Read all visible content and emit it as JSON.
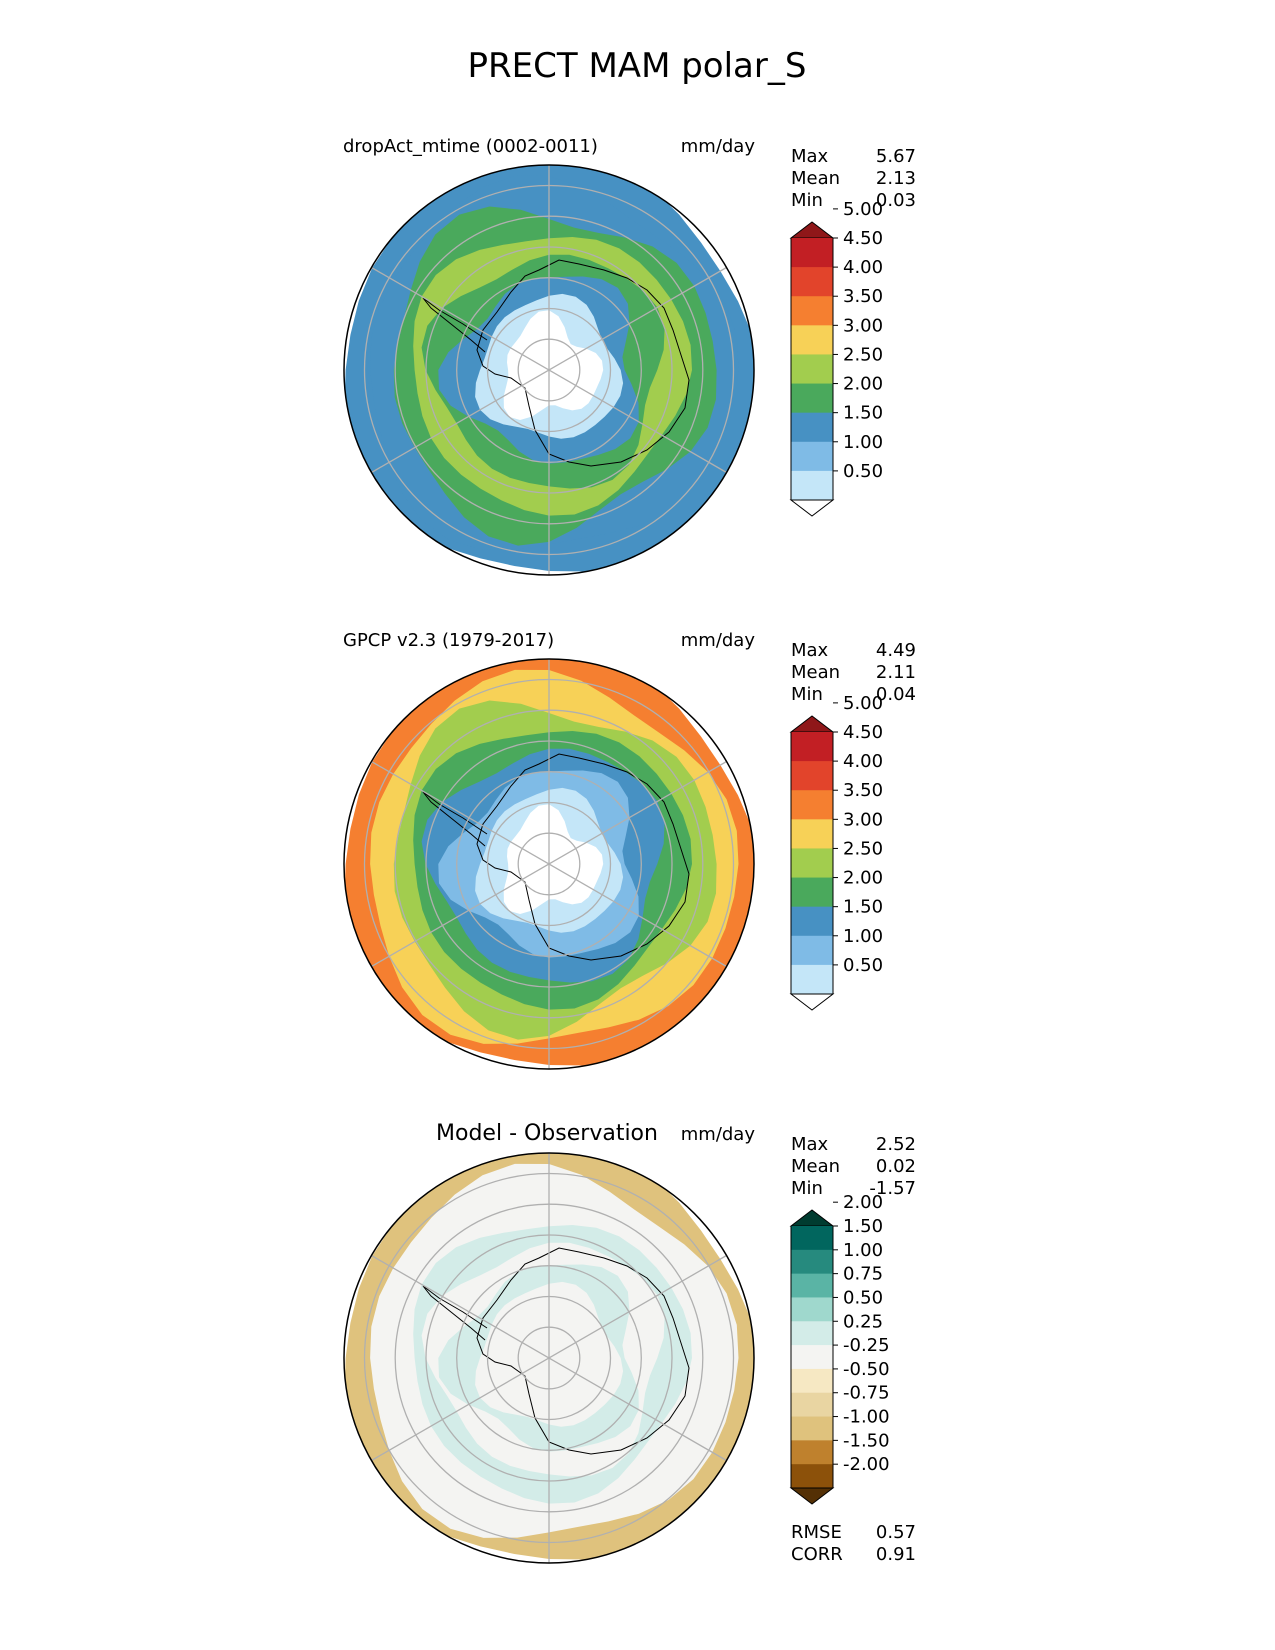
{
  "figure": {
    "title": "PRECT MAM polar_S"
  },
  "panels": [
    {
      "id": "test",
      "label": "dropAct_mtime (0002-0011)",
      "label_style": "small",
      "units": "mm/day",
      "stats": [
        {
          "name": "Max",
          "value": "5.67"
        },
        {
          "name": "Mean",
          "value": "2.13"
        },
        {
          "name": "Min",
          "value": "0.03"
        }
      ],
      "extra_stats": [],
      "colorbar": {
        "colors": [
          "#ffffff",
          "#c4e6f8",
          "#7fbbe6",
          "#4791c3",
          "#4aa95c",
          "#a2cd4e",
          "#f7d157",
          "#f57f30",
          "#e2442b",
          "#c21f24",
          "#8f1719"
        ],
        "labels": [
          "0.50",
          "1.00",
          "1.50",
          "2.00",
          "2.50",
          "3.00",
          "3.50",
          "4.00",
          "4.50",
          "5.00"
        ]
      },
      "rings": [
        {
          "level": 3
        },
        {
          "level": 3
        },
        {
          "level": 4
        },
        {
          "level": 5
        },
        {
          "level": 4
        },
        {
          "level": 3
        },
        {
          "level": 1
        },
        {
          "level": 0
        },
        {
          "level": 0
        }
      ]
    },
    {
      "id": "reference",
      "label": "GPCP v2.3 (1979-2017)",
      "label_style": "small",
      "units": "mm/day",
      "stats": [
        {
          "name": "Max",
          "value": "4.49"
        },
        {
          "name": "Mean",
          "value": "2.11"
        },
        {
          "name": "Min",
          "value": "0.04"
        }
      ],
      "extra_stats": [],
      "colorbar": {
        "colors": [
          "#ffffff",
          "#c4e6f8",
          "#7fbbe6",
          "#4791c3",
          "#4aa95c",
          "#a2cd4e",
          "#f7d157",
          "#f57f30",
          "#e2442b",
          "#c21f24",
          "#8f1719"
        ],
        "labels": [
          "0.50",
          "1.00",
          "1.50",
          "2.00",
          "2.50",
          "3.00",
          "3.50",
          "4.00",
          "4.50",
          "5.00"
        ]
      },
      "rings": [
        {
          "level": 7
        },
        {
          "level": 6
        },
        {
          "level": 5
        },
        {
          "level": 4
        },
        {
          "level": 3
        },
        {
          "level": 2
        },
        {
          "level": 1
        },
        {
          "level": 0
        },
        {
          "level": 0
        }
      ]
    },
    {
      "id": "difference",
      "label": "Model - Observation",
      "label_style": "large",
      "units": "mm/day",
      "stats": [
        {
          "name": "Max",
          "value": "2.52"
        },
        {
          "name": "Mean",
          "value": "0.02"
        },
        {
          "name": "Min",
          "value": "-1.57"
        }
      ],
      "extra_stats": [
        {
          "name": "RMSE",
          "value": "0.57"
        },
        {
          "name": "CORR",
          "value": "0.91"
        }
      ],
      "colorbar": {
        "colors": [
          "#543005",
          "#8c510a",
          "#bf812d",
          "#dfc27d",
          "#e9d5a2",
          "#f6e8c3",
          "#f4f4f2",
          "#d3ece8",
          "#9fd8cd",
          "#5ab4a5",
          "#268a7e",
          "#01665e",
          "#003c30"
        ],
        "labels": [
          "-2.00",
          "-1.50",
          "-1.00",
          "-0.75",
          "-0.50",
          "-0.25",
          "0.25",
          "0.50",
          "0.75",
          "1.00",
          "1.50",
          "2.00"
        ]
      },
      "rings": [
        {
          "level": 3
        },
        {
          "level": 6
        },
        {
          "level": 6
        },
        {
          "level": 7
        },
        {
          "level": 6
        },
        {
          "level": 7
        },
        {
          "level": 6
        },
        {
          "level": 6
        },
        {
          "level": 6
        }
      ]
    }
  ]
}
